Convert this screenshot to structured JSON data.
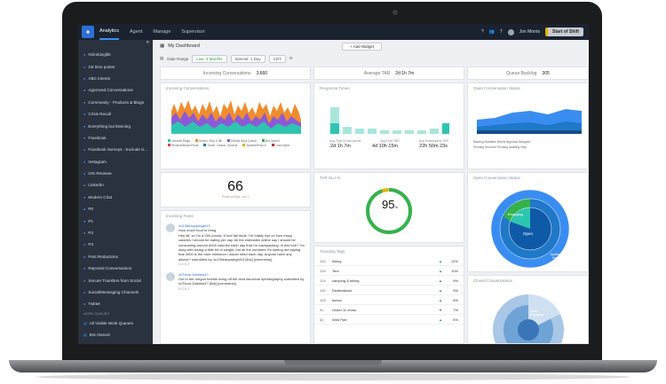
{
  "topnav": {
    "items": [
      "Analytics",
      "Agent",
      "Manage",
      "Supervisor"
    ],
    "notif_count": "7",
    "user": "Jon Morris",
    "shift": "Start of Shift"
  },
  "sidebar": {
    "items": [
      "#climbinglife",
      "1st time poster",
      "ABC Intents",
      "Approved Conversations",
      "Community - Products & Blogs",
      "Crisis Recall",
      "Everything but listening",
      "Facebook",
      "Facebook Surveys - Exclude S...",
      "Instagram",
      "iOS Reviews",
      "LinkedIn",
      "Modern Chat",
      "P0",
      "P1",
      "P2",
      "P3",
      "Post Redactions",
      "Rejected Conversations",
      "Secure Transfers from Social",
      "Social/Messaging Channels",
      "Twitter"
    ],
    "section": "WORK QUEUES",
    "items2": [
      "All Visible Work Queues",
      "Bot Owned"
    ]
  },
  "dashboard": {
    "title": "My Dashboard",
    "add_widget": "+ Add Widget"
  },
  "filters": {
    "date_range": "Date Range",
    "live": "Live: 3 Months",
    "interval": "Interval: 1 Day",
    "tz": "CDT"
  },
  "kpis": {
    "incoming_label": "Incoming Conversations",
    "incoming_value": "3,660",
    "tar_label": "Average TAR",
    "tar_value": "2d 1h 7m",
    "backlog_label": "Queue Backlog",
    "backlog_value": "305"
  },
  "widgets": {
    "incoming_conv": "Incoming Conversations",
    "response_times": "Response Times",
    "open_status": "Open Conversation Status",
    "tar_sla": "TAR SLA %",
    "open_status2": "Open Conversation Status",
    "incoming_posts": "Incoming Posts",
    "trending": "Trending Tags",
    "closed": "Closed Conversations"
  },
  "response": {
    "avg_first": "Avg Time in first period",
    "first_tar": "Avg First TAR",
    "sub_tar": "Avg Subsequent TAR",
    "v1": "2d 1h 7m",
    "v2": "4d 10h 15m",
    "v3": "22h 50m 23s"
  },
  "big_number": {
    "value": "66",
    "label": "Posts at Risk, out 1"
  },
  "sla": {
    "value": "95",
    "unit": "%"
  },
  "posts": [
    {
      "user": "/u/13heavyweight13",
      "title": "How much food to bring",
      "body": "Hey all, so I'm a 250 pound, 6 foot tall dude. I'm totally lost on how many calories I should be eating per day. All the estimates online say I should be consuming around 6000 calories each day that I'm backpacking. Is this true? I'm okay with losing a little bit of weight, but all the numbers I'm seeing are saying that 3000 is the bare minimum I would need each day. Anyone have any advice? submitted by /u/13heavyweight13 [link] [comments]",
      "stats": "0 6 5 2"
    },
    {
      "user": "/u/Tenor-Daniels4?",
      "title": "",
      "body": "Out in the oregon forests living off the land #survival #photography submitted by /u/Tenor-Daniels4? [link] [comments]",
      "stats": "0 6 5 2"
    }
  ],
  "tags": [
    {
      "n": "153",
      "t": "hiking",
      "p": "12%",
      "d": "up"
    },
    {
      "n": "134",
      "t": "Tent",
      "p": "10%",
      "d": "up"
    },
    {
      "n": "124",
      "t": "camping & hiking",
      "p": "9%",
      "d": "up"
    },
    {
      "n": "119",
      "t": "Destinations",
      "p": "9%",
      "d": "up"
    },
    {
      "n": "103",
      "t": "kudos",
      "p": "8%",
      "d": "up"
    },
    {
      "n": "91",
      "t": "Under 11 chars.",
      "p": "7%",
      "d": "dn"
    },
    {
      "n": "61",
      "t": "Web Part",
      "p": "5%",
      "d": "up"
    }
  ],
  "donut": {
    "engaging": "Engaging",
    "open": "Open",
    "awaiting": "Awaiting First Response"
  },
  "closed_donut": {
    "label": "Done Engaging"
  },
  "status_legend": {
    "backlog": "Backlog",
    "pending": "Pending",
    "l1": "Available",
    "l2": "Needs Approval",
    "l3": "Assigned",
    "l4": "Snoozed",
    "l5": "Pending",
    "l6": "Awaiting Help"
  },
  "incoming_legend": [
    "Urbanite Blogs",
    "Orders, Ship & Bill",
    "Default Work Queue",
    "Bot Owned",
    "Reviews/Brand Posts",
    "Travel, Classic, General",
    "Spanish/French",
    "Crisis Mgmt"
  ],
  "colors": {
    "accent": "#3a8df0",
    "teal": "#2ec5b0",
    "green": "#35b24a",
    "blue": "#1f78c8",
    "orange": "#f08c2e",
    "red": "#e04040",
    "purple": "#8c5ad6",
    "yellow": "#e3b200"
  }
}
